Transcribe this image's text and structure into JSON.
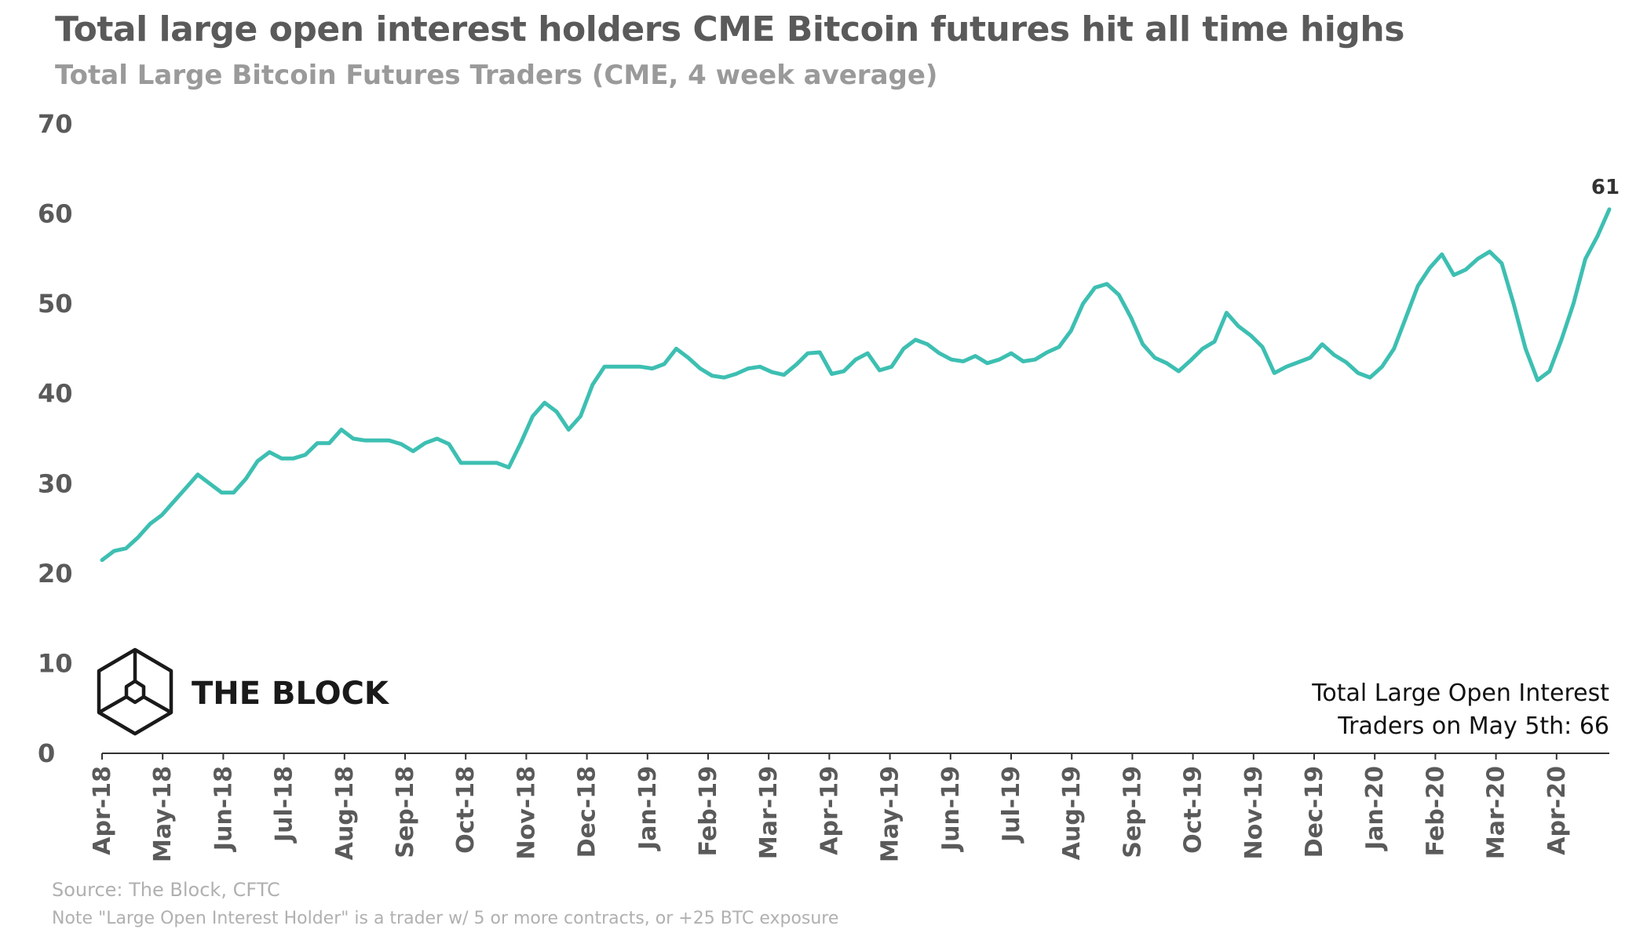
{
  "title": "Total large open interest holders CME Bitcoin futures hit all time highs",
  "subtitle": "Total Large Bitcoin Futures Traders (CME, 4 week average)",
  "source": "Source: The Block, CFTC",
  "note": "Note \"Large Open Interest Holder\" is a trader w/ 5 or more contracts, or +25 BTC exposure",
  "logo_text": "THE BLOCK",
  "annotation": [
    "Total Large Open Interest",
    "Traders on May 5th: 66"
  ],
  "colors": {
    "line": "#3dbfb2",
    "axis": "#333333",
    "text": "#5a5a5a"
  },
  "chart_data": {
    "type": "line",
    "title": "Total large open interest holders CME Bitcoin futures hit all time highs",
    "subtitle": "Total Large Bitcoin Futures Traders (CME, 4 week average)",
    "xlabel": "",
    "ylabel": "",
    "ylim": [
      0,
      70
    ],
    "yticks": [
      0,
      10,
      20,
      30,
      40,
      50,
      60,
      70
    ],
    "xticks": [
      "Apr-18",
      "May-18",
      "Jun-18",
      "Jul-18",
      "Aug-18",
      "Sep-18",
      "Oct-18",
      "Nov-18",
      "Dec-18",
      "Jan-19",
      "Feb-19",
      "Mar-19",
      "Apr-19",
      "May-19",
      "Jun-19",
      "Jul-19",
      "Aug-19",
      "Sep-19",
      "Oct-19",
      "Nov-19",
      "Dec-19",
      "Jan-20",
      "Feb-20",
      "Mar-20",
      "Apr-20"
    ],
    "grid": false,
    "last_point_label": "61",
    "series": [
      {
        "values": [
          21.5,
          22.5,
          22.8,
          24,
          25.5,
          26.5,
          28,
          29.5,
          31,
          30,
          29,
          29,
          30.5,
          32.5,
          33.5,
          32.8,
          32.8,
          33.2,
          34.5,
          34.5,
          36,
          35,
          34.8,
          34.8,
          34.8,
          34.4,
          33.6,
          34.5,
          35,
          34.4,
          32.3,
          32.3,
          32.3,
          32.3,
          31.8,
          34.5,
          37.5,
          39,
          38,
          36,
          37.5,
          41,
          43,
          43,
          43,
          43,
          42.8,
          43.3,
          45,
          44,
          42.8,
          42,
          41.8,
          42.2,
          42.8,
          43,
          42.4,
          42.1,
          43.2,
          44.5,
          44.6,
          42.2,
          42.5,
          43.8,
          44.5,
          42.6,
          43,
          45,
          46,
          45.5,
          44.5,
          43.8,
          43.6,
          44.2,
          43.4,
          43.8,
          44.5,
          43.6,
          43.8,
          44.6,
          45.2,
          47,
          50,
          51.8,
          52.2,
          51,
          48.5,
          45.5,
          44,
          43.4,
          42.5,
          43.7,
          45,
          45.8,
          49,
          47.5,
          46.5,
          45.2,
          42.3,
          43,
          43.5,
          44,
          45.5,
          44.3,
          43.5,
          42.3,
          41.8,
          43,
          45,
          48.5,
          52,
          54,
          55.5,
          53.2,
          53.8,
          55,
          55.8,
          54.5,
          50,
          45,
          41.5,
          42.5,
          46,
          50,
          55,
          57.5,
          60.5
        ]
      }
    ]
  }
}
